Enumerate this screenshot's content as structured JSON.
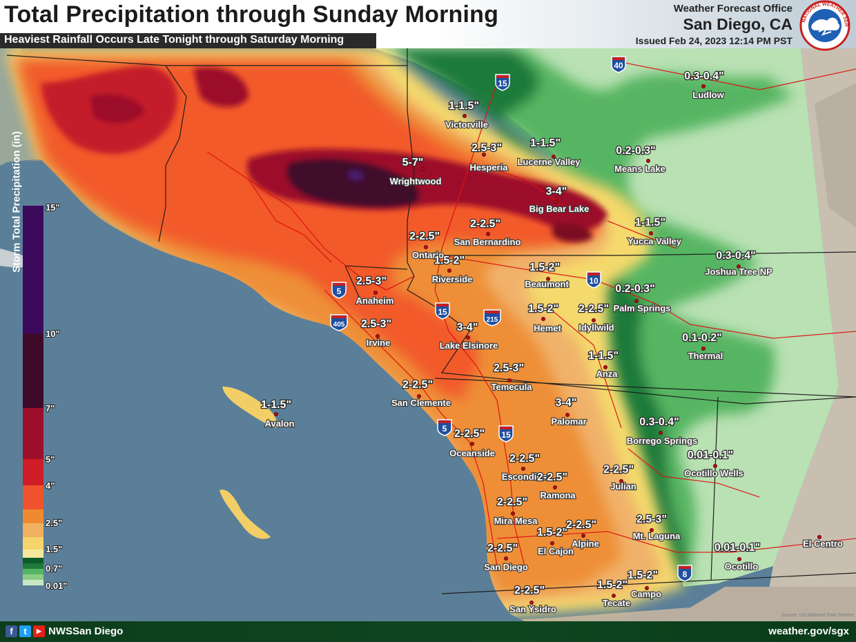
{
  "header": {
    "title": "Total Precipitation through Sunday Morning",
    "subtitle": "Heaviest Rainfall Occurs Late Tonight through Saturday Morning",
    "office_line1": "Weather Forecast Office",
    "office_line2": "San Diego, CA",
    "issued": "Issued Feb 24, 2023 12:14 PM PST",
    "logo_text": "NATIONAL WEATHER SERVICE"
  },
  "legend": {
    "title": "Storm Total Precipitation (in)",
    "ticks": [
      "15\"",
      "10\"",
      "7\"",
      "5\"",
      "4\"",
      "2.5\"",
      "1.5\"",
      "0.7\"",
      "0.01\""
    ],
    "colors": [
      "#3c0a5c",
      "#3f0a2a",
      "#9c0e2c",
      "#d01c26",
      "#f0522e",
      "#f0a040",
      "#f6d46a",
      "#0a5a2a",
      "#c8e8c4"
    ]
  },
  "locations": [
    {
      "name": "Victorville",
      "amount": "1-1.5\""
    },
    {
      "name": "Hesperia",
      "amount": "2.5-3\""
    },
    {
      "name": "Lucerne Valley",
      "amount": "1-1.5\""
    },
    {
      "name": "Means Lake",
      "amount": "0.2-0.3\""
    },
    {
      "name": "Ludlow",
      "amount": "0.3-0.4\""
    },
    {
      "name": "Wrightwood",
      "amount": "5-7\""
    },
    {
      "name": "Big Bear Lake",
      "amount": "3-4\""
    },
    {
      "name": "San Bernardino",
      "amount": "2-2.5\""
    },
    {
      "name": "Yucca Valley",
      "amount": "1-1.5\""
    },
    {
      "name": "Ontario",
      "amount": "2-2.5\""
    },
    {
      "name": "Riverside",
      "amount": "1.5-2\""
    },
    {
      "name": "Beaumont",
      "amount": "1.5-2\""
    },
    {
      "name": "Joshua Tree NP",
      "amount": "0.3-0.4\""
    },
    {
      "name": "Anaheim",
      "amount": "2.5-3\""
    },
    {
      "name": "Palm Springs",
      "amount": "0.2-0.3\""
    },
    {
      "name": "Hemet",
      "amount": "1.5-2\""
    },
    {
      "name": "Idyllwild",
      "amount": "2-2.5\""
    },
    {
      "name": "Irvine",
      "amount": "2.5-3\""
    },
    {
      "name": "Lake Elsinore",
      "amount": "3-4\""
    },
    {
      "name": "Thermal",
      "amount": "0.1-0.2\""
    },
    {
      "name": "Anza",
      "amount": "1-1.5\""
    },
    {
      "name": "Temecula",
      "amount": "2.5-3\""
    },
    {
      "name": "San Clemente",
      "amount": "2-2.5\""
    },
    {
      "name": "Avalon",
      "amount": "1-1.5\""
    },
    {
      "name": "Palomar",
      "amount": "3-4\""
    },
    {
      "name": "Borrego Springs",
      "amount": "0.3-0.4\""
    },
    {
      "name": "Oceanside",
      "amount": "2-2.5\""
    },
    {
      "name": "Ocotillo Wells",
      "amount": "0.01-0.1\""
    },
    {
      "name": "Escondido",
      "amount": "2-2.5\""
    },
    {
      "name": "Ramona",
      "amount": "2-2.5\""
    },
    {
      "name": "Julian",
      "amount": "2-2.5\""
    },
    {
      "name": "Mira Mesa",
      "amount": "2-2.5\""
    },
    {
      "name": "Mt. Laguna",
      "amount": "2.5-3\""
    },
    {
      "name": "El Cajon",
      "amount": "1.5-2\""
    },
    {
      "name": "Alpine",
      "amount": "2-2.5\""
    },
    {
      "name": "El Centro",
      "amount": ""
    },
    {
      "name": "San Diego",
      "amount": "2-2.5\""
    },
    {
      "name": "Ocotillo",
      "amount": "0.01-0.1\""
    },
    {
      "name": "Campo",
      "amount": "1.5-2\""
    },
    {
      "name": "Tecate",
      "amount": "1.5-2\""
    },
    {
      "name": "San Ysidro",
      "amount": "2-2.5\""
    }
  ],
  "interstates": [
    "15",
    "40",
    "5",
    "405",
    "15",
    "215",
    "10",
    "5",
    "15",
    "8"
  ],
  "footer": {
    "handle": "NWSSan Diego",
    "url": "weather.gov/sgx",
    "source": "Source: US National Park Service",
    "social": [
      "f",
      "t",
      "▶"
    ]
  }
}
